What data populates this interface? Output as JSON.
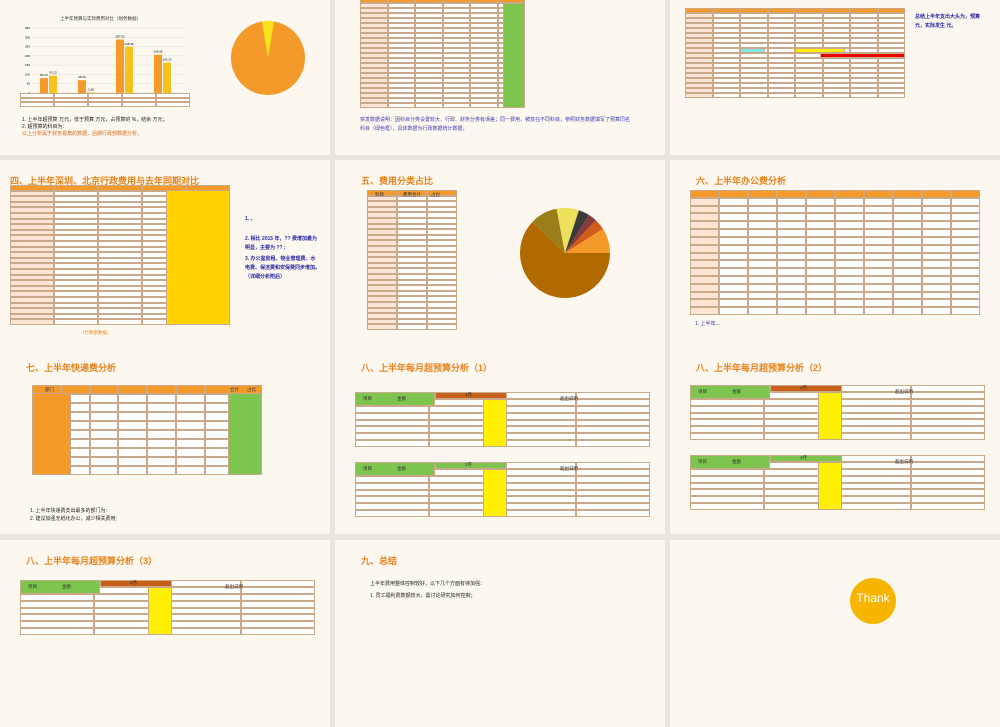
{
  "slides": [
    {
      "chart_title": "上半年预算与实际费用对比（财务数据）",
      "bars": {
        "ylim": [
          0,
          350
        ],
        "yticks": [
          0,
          50,
          100,
          150,
          200,
          250,
          300,
          350
        ],
        "series": [
          {
            "color": "#f39a2b",
            "values": [
              80.13,
              68.69,
              287.93,
              206.06
            ]
          },
          {
            "color": "#f7c21e",
            "values": [
              93.22,
              2.65,
              248.99,
              163.22
            ]
          }
        ]
      },
      "notes": [
        "1. 上半年超预算 万元，低于预算 万元，占预算的 %，结余 万元；",
        "2. 超预算的科目为：",
        "以上分析属于财务视角的数据，后期行政部数据分析。"
      ]
    },
    {
      "notes": [
        "突发数据说明：因科目分类设置较大，行政、财务分类有误差；同一费用，被放在不同科目，参照财务数据填写了预算同名科目（绿色框），具体数据为行政数据统计数据。"
      ]
    },
    {
      "notes": [
        "总结上半年支出大头为，预算 元，实际发生 元。"
      ]
    },
    {
      "title": "四、上半年深圳、北京行政费用与去年同期对比",
      "notes": [
        "1. 、",
        "2. 相比 2015 年，?? 费增加最为明显，主要为 ?? ;",
        "3. 办公室房租、物业管理费、水电费、保洁费和安保费同步增加。（详细分析附后）"
      ],
      "caption": "（行政部数据）"
    },
    {
      "title": "五、费用分类占比",
      "headers": [
        "科目",
        "费用合计",
        "占比"
      ]
    },
    {
      "title": "六、上半年办公费分析",
      "notes": [
        "1. 上半年..."
      ]
    },
    {
      "title": "七、上半年快递费分析",
      "headers": [
        "部门",
        "合计",
        "占比"
      ],
      "notes": [
        "1. 上半年快递费支出最多的部门为:",
        "2. 建议加强无纸化办公，减少相关费用;"
      ]
    },
    {
      "title": "八、上半年每月超预算分析（1）",
      "months": [
        "1月",
        "2月"
      ],
      "headers": [
        "项目",
        "金额",
        "超出说明"
      ]
    },
    {
      "title": "八、上半年每月超预算分析（2）",
      "months": [
        "3月",
        "4月"
      ],
      "headers": [
        "项目",
        "金额",
        "超出说明"
      ]
    },
    {
      "title": "八、上半年每月超预算分析（3）",
      "months": [
        "5月"
      ],
      "headers": [
        "项目",
        "金额",
        "超出说明"
      ]
    },
    {
      "title": "九、总结",
      "notes": [
        "上半年费用整体控制较好，以下几个方面有待加强：",
        "1. 员工福利费数额较大，需讨论研究如何控制；"
      ]
    },
    {
      "thanks": "Thank"
    }
  ]
}
